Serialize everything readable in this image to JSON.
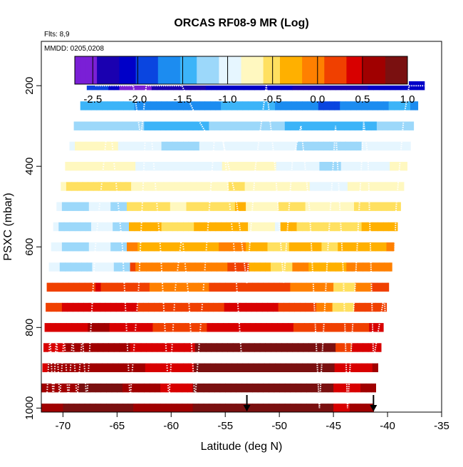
{
  "chart_data": {
    "type": "heatmap",
    "title": "ORCAS RF08-9 MR (Log)",
    "flights_note": "Flts: 8,9",
    "date_note": "MMDD: 0205,0208",
    "xlabel": "Latitude (deg N)",
    "ylabel": "PSXC (mbar)",
    "xlim": [
      -72,
      -35
    ],
    "ylim": [
      1010,
      90
    ],
    "xticks": [
      -70,
      -65,
      -60,
      -55,
      -50,
      -45,
      -40,
      -35
    ],
    "xtick_labels": [
      "-70",
      "-65",
      "-60",
      "-55",
      "-50",
      "-45",
      "-40",
      "-35"
    ],
    "yticks": [
      200,
      400,
      600,
      800,
      1000
    ],
    "ytick_labels": [
      "200",
      "400",
      "600",
      "800",
      "1000"
    ],
    "colorbar": {
      "range": [
        -2.7,
        1.0
      ],
      "ticks": [
        -2.5,
        -2.0,
        -1.5,
        -1.0,
        -0.5,
        0.0,
        0.5,
        1.0
      ],
      "tick_labels": [
        "-2.5",
        "-2.0",
        "-1.5",
        "-1.0",
        "-0.5",
        "0.0",
        "0.5",
        "1.0"
      ],
      "colors": [
        "#7a1fd6",
        "#1a00b0",
        "#0000c8",
        "#0a45e0",
        "#1c8cf0",
        "#3cb4f8",
        "#9cd8fa",
        "#e6f6ff",
        "#fff8c0",
        "#ffe060",
        "#ffb000",
        "#ff8000",
        "#f04000",
        "#d80000",
        "#a00000",
        "#7a1010"
      ]
    },
    "pressure_levels": [
      200,
      250,
      300,
      350,
      400,
      450,
      500,
      550,
      600,
      650,
      700,
      750,
      800,
      850,
      900,
      950,
      1000
    ],
    "row_lat_extent": [
      [
        -67.8,
        -36.6
      ],
      [
        -68.4,
        -37.2
      ],
      [
        -69.0,
        -37.6
      ],
      [
        -69.4,
        -37.9
      ],
      [
        -69.8,
        -38.2
      ],
      [
        -70.2,
        -38.5
      ],
      [
        -70.6,
        -38.8
      ],
      [
        -70.9,
        -39.1
      ],
      [
        -71.1,
        -39.4
      ],
      [
        -71.3,
        -39.6
      ],
      [
        -71.5,
        -39.9
      ],
      [
        -71.6,
        -40.1
      ],
      [
        -71.7,
        -40.4
      ],
      [
        -71.8,
        -40.6
      ],
      [
        -71.9,
        -40.9
      ],
      [
        -72.0,
        -41.1
      ],
      [
        -72.0,
        -41.3
      ]
    ],
    "base_values": [
      -2.2,
      -1.6,
      -1.3,
      -1.0,
      -0.9,
      -0.7,
      -0.5,
      -0.3,
      -0.2,
      0.0,
      0.1,
      0.25,
      0.35,
      0.45,
      0.55,
      0.62,
      0.68
    ],
    "anomalies": [
      {
        "lat_range": [
          -72,
          -64
        ],
        "levels": [
          500,
          550,
          600,
          650
        ],
        "value": -1.1
      },
      {
        "lat_range": [
          -65,
          -62
        ],
        "levels": [
          200
        ],
        "value": -2.7
      },
      {
        "lat_range": [
          -53,
          -50
        ],
        "levels": [
          450,
          500,
          550
        ],
        "value": -0.8
      },
      {
        "lat_range": [
          -53,
          -49
        ],
        "levels": [
          600,
          650
        ],
        "value": -0.4
      },
      {
        "lat_range": [
          -45,
          -43
        ],
        "levels": [
          700,
          750
        ],
        "value": -0.5
      },
      {
        "lat_range": [
          -58,
          -45
        ],
        "levels": [
          850,
          900,
          950,
          1000
        ],
        "value": 0.85
      }
    ],
    "flight_track_left": [
      [
        -71.5,
        980
      ],
      [
        -71.2,
        820
      ],
      [
        -70.9,
        980
      ],
      [
        -70.6,
        820
      ],
      [
        -70.3,
        980
      ],
      [
        -69.9,
        820
      ],
      [
        -69.5,
        980
      ],
      [
        -69.1,
        820
      ],
      [
        -68.7,
        980
      ],
      [
        -68.2,
        820
      ],
      [
        -67.8,
        985
      ],
      [
        -67.0,
        600
      ],
      [
        -66.0,
        330
      ],
      [
        -65.5,
        330
      ],
      [
        -64.5,
        600
      ],
      [
        -63.8,
        980
      ],
      [
        -63.0,
        700
      ],
      [
        -62.4,
        330
      ],
      [
        -61.8,
        330
      ],
      [
        -61.0,
        600
      ],
      [
        -60.2,
        980
      ],
      [
        -59.6,
        700
      ],
      [
        -59.0,
        570
      ],
      [
        -58.4,
        720
      ],
      [
        -57.8,
        980
      ],
      [
        -57.0,
        700
      ],
      [
        -56.0,
        330
      ],
      [
        -55.2,
        330
      ],
      [
        -54.2,
        600
      ],
      [
        -53.5,
        870
      ]
    ],
    "flight_track_right": [
      [
        -67.0,
        200
      ],
      [
        -66.4,
        200
      ],
      [
        -64.5,
        200
      ],
      [
        -63.5,
        200
      ],
      [
        -62.8,
        330
      ],
      [
        -62.3,
        200
      ],
      [
        -60.8,
        200
      ],
      [
        -60.2,
        200
      ],
      [
        -59.0,
        200
      ],
      [
        -57.8,
        270
      ],
      [
        -56.5,
        330
      ],
      [
        -55.3,
        330
      ],
      [
        -54.0,
        480
      ],
      [
        -53.0,
        690
      ],
      [
        -52.2,
        400
      ],
      [
        -51.2,
        200
      ],
      [
        -50.4,
        400
      ],
      [
        -49.6,
        690
      ],
      [
        -48.8,
        390
      ],
      [
        -48.0,
        300
      ],
      [
        -47.2,
        510
      ],
      [
        -46.3,
        1000
      ],
      [
        -45.5,
        600
      ],
      [
        -44.8,
        300
      ],
      [
        -44.1,
        660
      ],
      [
        -43.7,
        1000
      ],
      [
        -43.0,
        700
      ],
      [
        -42.2,
        290
      ],
      [
        -41.8,
        380
      ],
      [
        -41.3,
        880
      ],
      [
        -40.3,
        720
      ],
      [
        -39.8,
        1000
      ],
      [
        -39.2,
        500
      ],
      [
        -38.5,
        280
      ],
      [
        -38.0,
        200
      ],
      [
        -36.6,
        200
      ]
    ],
    "arrows_lat": [
      -53.0,
      -41.3
    ]
  }
}
